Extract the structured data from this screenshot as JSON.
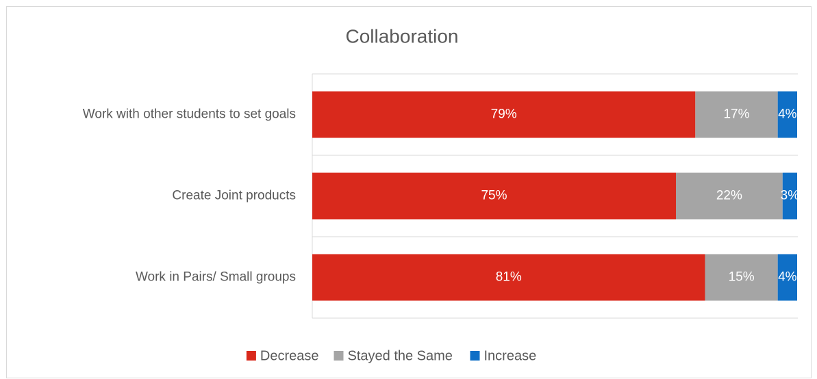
{
  "chart_data": {
    "type": "stacked-bar",
    "orientation": "horizontal",
    "title": "Collaboration",
    "categories": [
      "Work with other students to set goals",
      "Create Joint products",
      "Work in Pairs/ Small groups"
    ],
    "series": [
      {
        "name": "Decrease",
        "color": "#d9291c",
        "values": [
          79,
          75,
          81
        ],
        "value_labels": [
          "79%",
          "75%",
          "81%"
        ]
      },
      {
        "name": "Stayed the Same",
        "color": "#a5a5a5",
        "values": [
          17,
          22,
          15
        ],
        "value_labels": [
          "17%",
          "22%",
          "15%"
        ]
      },
      {
        "name": "Increase",
        "color": "#0f6fc6",
        "values": [
          4,
          3,
          4
        ],
        "value_labels": [
          "4%",
          "3%",
          "4%"
        ]
      }
    ],
    "xlim": [
      0,
      100
    ],
    "legend": "bottom"
  }
}
